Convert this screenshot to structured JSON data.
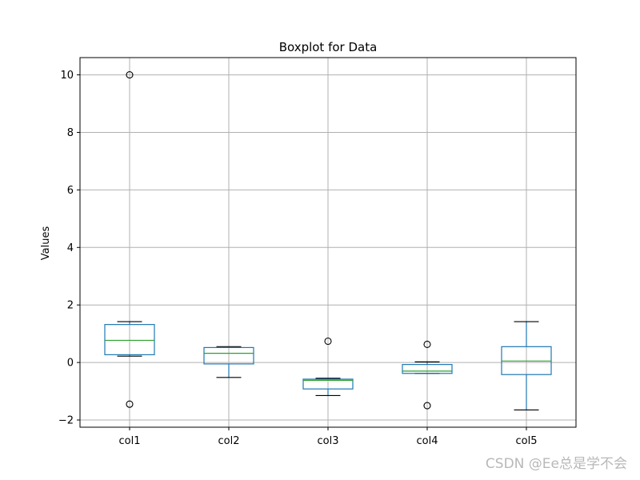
{
  "chart_data": {
    "type": "boxplot",
    "title": "Boxplot for Data",
    "xlabel": "",
    "ylabel": "Values",
    "ylim": [
      -2.25,
      10.6
    ],
    "yticks": [
      -2,
      0,
      2,
      4,
      6,
      8,
      10
    ],
    "ytick_labels": [
      "−2",
      "0",
      "2",
      "4",
      "6",
      "8",
      "10"
    ],
    "grid": true,
    "categories": [
      "col1",
      "col2",
      "col3",
      "col4",
      "col5"
    ],
    "boxes": [
      {
        "name": "col1",
        "whisker_low": 0.22,
        "q1": 0.27,
        "median": 0.77,
        "q3": 1.32,
        "whisker_high": 1.42,
        "outliers": [
          10.0,
          -1.45
        ]
      },
      {
        "name": "col2",
        "whisker_low": -0.52,
        "q1": -0.05,
        "median": 0.32,
        "q3": 0.52,
        "whisker_high": 0.55,
        "outliers": []
      },
      {
        "name": "col3",
        "whisker_low": -1.15,
        "q1": -0.92,
        "median": -0.62,
        "q3": -0.58,
        "whisker_high": -0.55,
        "outliers": [
          0.74
        ]
      },
      {
        "name": "col4",
        "whisker_low": -0.38,
        "q1": -0.38,
        "median": -0.3,
        "q3": -0.07,
        "whisker_high": 0.02,
        "outliers": [
          0.63,
          -1.5
        ]
      },
      {
        "name": "col5",
        "whisker_low": -1.65,
        "q1": -0.42,
        "median": 0.05,
        "q3": 0.55,
        "whisker_high": 1.42,
        "outliers": []
      }
    ],
    "colors": {
      "box": "#1f77b4",
      "median": "#2ca02c",
      "whisker": "#000000",
      "grid": "#b0b0b0",
      "frame": "#000000"
    }
  },
  "watermark": "CSDN @Ee总是学不会"
}
